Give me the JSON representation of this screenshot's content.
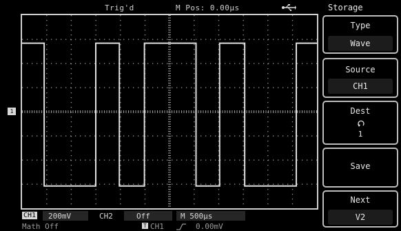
{
  "status": {
    "trigger": "Trig'd",
    "m_pos": "M Pos: 0.00µs",
    "usb_icon": "usb-icon"
  },
  "waveform": {
    "type": "square",
    "ch1_marker": "1",
    "high_level_fraction": 0.145,
    "low_level_fraction": 0.885,
    "edges_fraction": [
      0.075,
      0.25,
      0.33,
      0.415,
      0.59,
      0.67,
      0.755,
      0.93,
      1.0
    ]
  },
  "menu": {
    "title": "Storage",
    "items": [
      {
        "label": "Type",
        "value": "Wave"
      },
      {
        "label": "Source",
        "value": "CH1"
      },
      {
        "label": "Dest",
        "value": "1",
        "icon": "rotate-knob-icon"
      },
      {
        "label": "Save",
        "value": ""
      },
      {
        "label": "Next",
        "value": "V2"
      }
    ]
  },
  "bottom": {
    "ch1_label": "CH1",
    "ch1_scale": "200mV",
    "ch2_label": "CH2",
    "ch2_state": "Off",
    "timebase": "M 500µs",
    "math": "Math Off",
    "trig_source": "CH1",
    "trig_level": "0.00mV",
    "trig_badge": "T"
  }
}
